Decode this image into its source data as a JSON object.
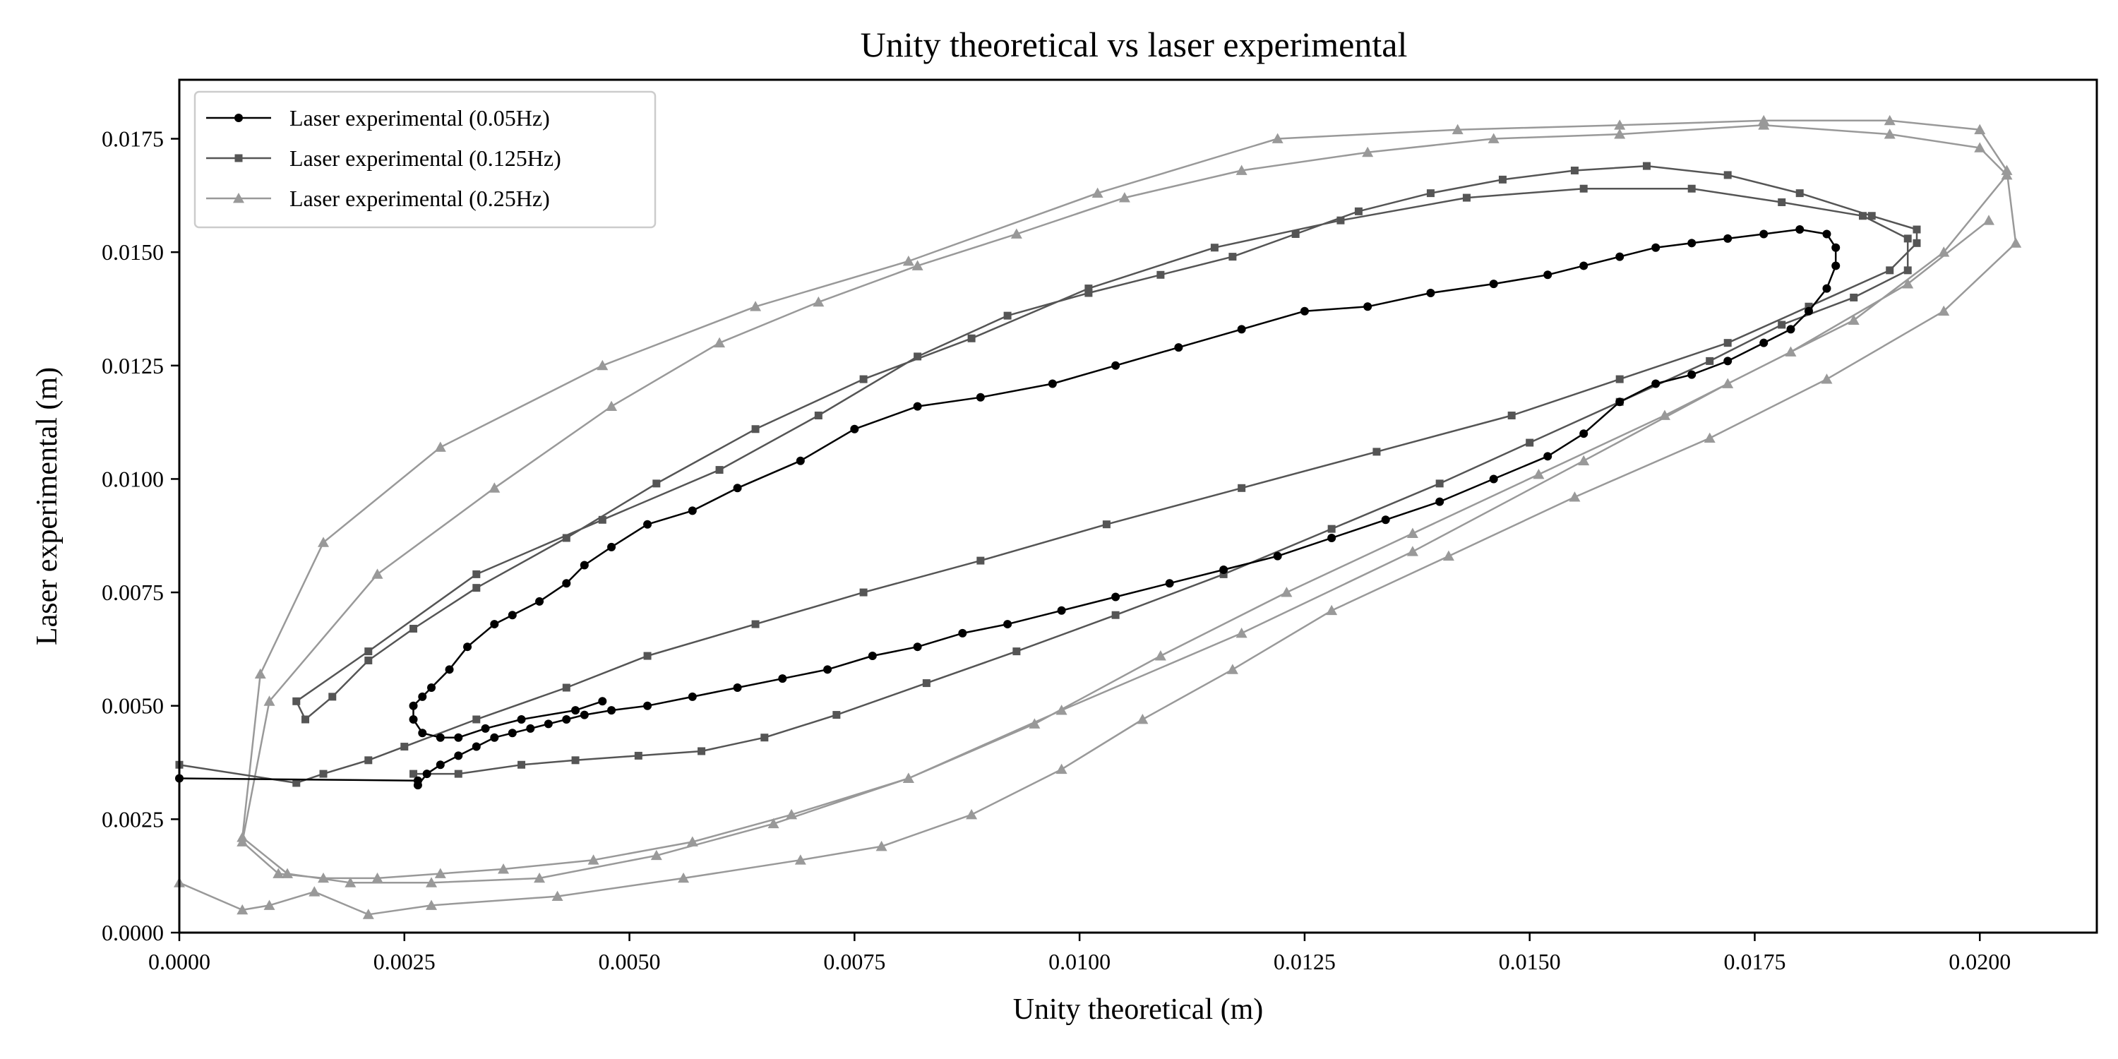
{
  "chart_data": {
    "type": "line",
    "title": "Unity theoretical vs laser experimental",
    "xlabel": "Unity theoretical (m)",
    "ylabel": "Laser experimental (m)",
    "xlim": [
      0.0,
      0.0213
    ],
    "ylim": [
      0.0,
      0.0188
    ],
    "xticks": [
      "0.0000",
      "0.0025",
      "0.0050",
      "0.0075",
      "0.0100",
      "0.0125",
      "0.0150",
      "0.0175",
      "0.0200"
    ],
    "yticks": [
      "0.0000",
      "0.0025",
      "0.0050",
      "0.0075",
      "0.0100",
      "0.0125",
      "0.0150",
      "0.0175"
    ],
    "grid": false,
    "legend_position": "top-left",
    "series": [
      {
        "name": "Laser experimental (0.05Hz)",
        "color": "#000000",
        "marker": "circle",
        "x": [
          0.0,
          0.00265,
          0.00265,
          0.00275,
          0.0029,
          0.0031,
          0.0033,
          0.0035,
          0.0037,
          0.0039,
          0.0041,
          0.0043,
          0.0045,
          0.0048,
          0.0052,
          0.0057,
          0.0062,
          0.0067,
          0.0072,
          0.0077,
          0.0082,
          0.0087,
          0.0092,
          0.0098,
          0.0104,
          0.011,
          0.0116,
          0.0122,
          0.0128,
          0.0134,
          0.014,
          0.0146,
          0.0152,
          0.0156,
          0.016,
          0.0164,
          0.0168,
          0.0172,
          0.0176,
          0.0179,
          0.0181,
          0.0183,
          0.0184,
          0.0184,
          0.0183,
          0.018,
          0.0176,
          0.0172,
          0.0168,
          0.0164,
          0.016,
          0.0156,
          0.0152,
          0.0146,
          0.0139,
          0.0132,
          0.0125,
          0.0118,
          0.0111,
          0.0104,
          0.0097,
          0.0089,
          0.0082,
          0.0075,
          0.0069,
          0.0062,
          0.0057,
          0.0052,
          0.0048,
          0.0045,
          0.0043,
          0.004,
          0.0037,
          0.0035,
          0.0032,
          0.003,
          0.0028,
          0.0027,
          0.0026,
          0.0026,
          0.0027,
          0.0029,
          0.0031,
          0.0034,
          0.0038,
          0.0044,
          0.0047
        ],
        "y": [
          0.0034,
          0.00335,
          0.00325,
          0.0035,
          0.0037,
          0.0039,
          0.0041,
          0.0043,
          0.0044,
          0.0045,
          0.0046,
          0.0047,
          0.0048,
          0.0049,
          0.005,
          0.0052,
          0.0054,
          0.0056,
          0.0058,
          0.0061,
          0.0063,
          0.0066,
          0.0068,
          0.0071,
          0.0074,
          0.0077,
          0.008,
          0.0083,
          0.0087,
          0.0091,
          0.0095,
          0.01,
          0.0105,
          0.011,
          0.0117,
          0.0121,
          0.0123,
          0.0126,
          0.013,
          0.0133,
          0.0137,
          0.0142,
          0.0147,
          0.0151,
          0.0154,
          0.0155,
          0.0154,
          0.0153,
          0.0152,
          0.0151,
          0.0149,
          0.0147,
          0.0145,
          0.0143,
          0.0141,
          0.0138,
          0.0137,
          0.0133,
          0.0129,
          0.0125,
          0.0121,
          0.0118,
          0.0116,
          0.0111,
          0.0104,
          0.0098,
          0.0093,
          0.009,
          0.0085,
          0.0081,
          0.0077,
          0.0073,
          0.007,
          0.0068,
          0.0063,
          0.0058,
          0.0054,
          0.0052,
          0.005,
          0.0047,
          0.0044,
          0.0043,
          0.0043,
          0.0045,
          0.0047,
          0.0049,
          0.0051
        ]
      },
      {
        "name": "Laser experimental (0.125Hz)",
        "color": "#555555",
        "marker": "square",
        "x": [
          0.0,
          0.0013,
          0.0016,
          0.0021,
          0.0025,
          0.0033,
          0.0043,
          0.0052,
          0.0064,
          0.0076,
          0.0089,
          0.0103,
          0.0118,
          0.0133,
          0.0148,
          0.016,
          0.0172,
          0.0181,
          0.019,
          0.0193,
          0.0193,
          0.0188,
          0.018,
          0.0172,
          0.0163,
          0.0155,
          0.0147,
          0.0139,
          0.0131,
          0.0124,
          0.0117,
          0.0109,
          0.0101,
          0.0092,
          0.0082,
          0.0071,
          0.006,
          0.0047,
          0.0033,
          0.0021,
          0.0013,
          0.0014,
          0.0017,
          0.0021,
          0.0026,
          0.0033,
          0.0043,
          0.0053,
          0.0064,
          0.0076,
          0.0088,
          0.0101,
          0.0115,
          0.0129,
          0.0143,
          0.0156,
          0.0168,
          0.0178,
          0.0187,
          0.0192,
          0.0192,
          0.0186,
          0.0178,
          0.017,
          0.016,
          0.015,
          0.014,
          0.0128,
          0.0116,
          0.0104,
          0.0093,
          0.0083,
          0.0073,
          0.0065,
          0.0058,
          0.0051,
          0.0044,
          0.0038,
          0.0031,
          0.0026
        ],
        "y": [
          0.0037,
          0.0033,
          0.0035,
          0.0038,
          0.0041,
          0.0047,
          0.0054,
          0.0061,
          0.0068,
          0.0075,
          0.0082,
          0.009,
          0.0098,
          0.0106,
          0.0114,
          0.0122,
          0.013,
          0.0138,
          0.0146,
          0.0152,
          0.0155,
          0.0158,
          0.0163,
          0.0167,
          0.0169,
          0.0168,
          0.0166,
          0.0163,
          0.0159,
          0.0154,
          0.0149,
          0.0145,
          0.0141,
          0.0136,
          0.0127,
          0.0114,
          0.0102,
          0.0091,
          0.0079,
          0.0062,
          0.0051,
          0.0047,
          0.0052,
          0.006,
          0.0067,
          0.0076,
          0.0087,
          0.0099,
          0.0111,
          0.0122,
          0.0131,
          0.0142,
          0.0151,
          0.0157,
          0.0162,
          0.0164,
          0.0164,
          0.0161,
          0.0158,
          0.0153,
          0.0146,
          0.014,
          0.0134,
          0.0126,
          0.0117,
          0.0108,
          0.0099,
          0.0089,
          0.0079,
          0.007,
          0.0062,
          0.0055,
          0.0048,
          0.0043,
          0.004,
          0.0039,
          0.0038,
          0.0037,
          0.0035,
          0.0035
        ]
      },
      {
        "name": "Laser experimental (0.25Hz)",
        "color": "#999999",
        "marker": "triangle",
        "x": [
          0.0,
          0.0007,
          0.001,
          0.0015,
          0.0021,
          0.0028,
          0.0042,
          0.0056,
          0.0069,
          0.0078,
          0.0088,
          0.0098,
          0.0107,
          0.0117,
          0.0128,
          0.0141,
          0.0155,
          0.017,
          0.0183,
          0.0196,
          0.0204,
          0.0203,
          0.02,
          0.019,
          0.0176,
          0.016,
          0.0142,
          0.0122,
          0.0102,
          0.0081,
          0.0064,
          0.0047,
          0.0029,
          0.0016,
          0.0009,
          0.0007,
          0.0012,
          0.0019,
          0.0028,
          0.004,
          0.0053,
          0.0066,
          0.0081,
          0.0098,
          0.0118,
          0.0137,
          0.0156,
          0.0172,
          0.0186,
          0.0196,
          0.0203,
          0.02,
          0.019,
          0.0176,
          0.016,
          0.0146,
          0.0132,
          0.0118,
          0.0105,
          0.0093,
          0.0082,
          0.0071,
          0.006,
          0.0048,
          0.0035,
          0.0022,
          0.001,
          0.0007,
          0.0011,
          0.0016,
          0.0022,
          0.0029,
          0.0036,
          0.0046,
          0.0057,
          0.0068,
          0.0081,
          0.0095,
          0.0109,
          0.0123,
          0.0137,
          0.0151,
          0.0165,
          0.0179,
          0.0192,
          0.0201
        ],
        "y": [
          0.0011,
          0.0005,
          0.0006,
          0.0009,
          0.0004,
          0.0006,
          0.0008,
          0.0012,
          0.0016,
          0.0019,
          0.0026,
          0.0036,
          0.0047,
          0.0058,
          0.0071,
          0.0083,
          0.0096,
          0.0109,
          0.0122,
          0.0137,
          0.0152,
          0.0168,
          0.0177,
          0.0179,
          0.0179,
          0.0178,
          0.0177,
          0.0175,
          0.0163,
          0.0148,
          0.0138,
          0.0125,
          0.0107,
          0.0086,
          0.0057,
          0.0021,
          0.0013,
          0.0011,
          0.0011,
          0.0012,
          0.0017,
          0.0024,
          0.0034,
          0.0049,
          0.0066,
          0.0084,
          0.0104,
          0.0121,
          0.0135,
          0.015,
          0.0167,
          0.0173,
          0.0176,
          0.0178,
          0.0176,
          0.0175,
          0.0172,
          0.0168,
          0.0162,
          0.0154,
          0.0147,
          0.0139,
          0.013,
          0.0116,
          0.0098,
          0.0079,
          0.0051,
          0.002,
          0.0013,
          0.0012,
          0.0012,
          0.0013,
          0.0014,
          0.0016,
          0.002,
          0.0026,
          0.0034,
          0.0046,
          0.0061,
          0.0075,
          0.0088,
          0.0101,
          0.0114,
          0.0128,
          0.0143,
          0.0157
        ]
      }
    ]
  }
}
